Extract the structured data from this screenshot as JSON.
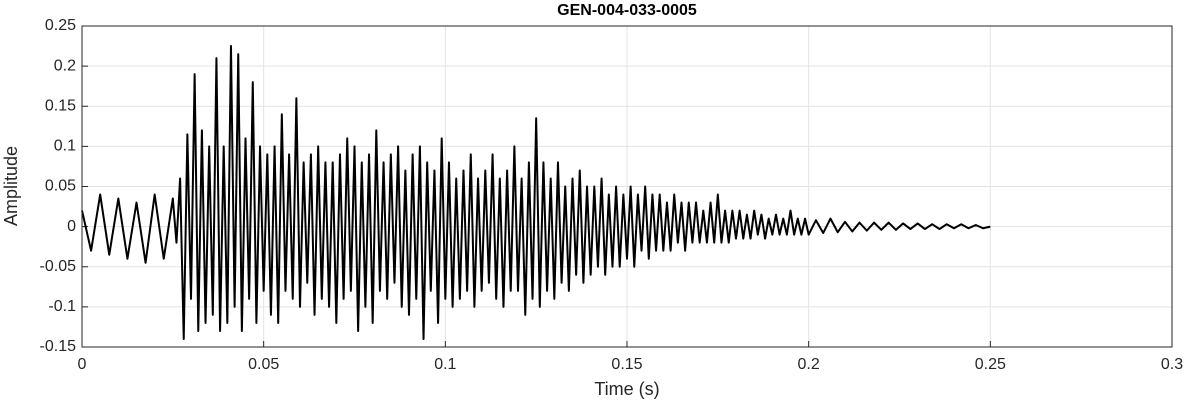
{
  "chart_data": {
    "type": "line",
    "title": "GEN-004-033-0005",
    "xlabel": "Time (s)",
    "ylabel": "Amplitude",
    "color": "#000000",
    "grid": true,
    "xlim": [
      0,
      0.3
    ],
    "xticks": [
      0,
      0.05,
      0.1,
      0.15,
      0.2,
      0.25,
      0.3
    ],
    "ylim": [
      -0.15,
      0.25
    ],
    "yticks": [
      -0.15,
      -0.1,
      -0.05,
      0,
      0.05,
      0.1,
      0.15,
      0.2,
      0.25
    ],
    "x": [
      0,
      0.0025,
      0.005,
      0.0075,
      0.01,
      0.0125,
      0.015,
      0.0175,
      0.02,
      0.0225,
      0.025,
      0.026,
      0.027,
      0.028,
      0.029,
      0.03,
      0.031,
      0.032,
      0.033,
      0.034,
      0.035,
      0.036,
      0.037,
      0.038,
      0.039,
      0.04,
      0.041,
      0.042,
      0.043,
      0.044,
      0.045,
      0.046,
      0.047,
      0.048,
      0.049,
      0.05,
      0.051,
      0.052,
      0.053,
      0.054,
      0.055,
      0.056,
      0.057,
      0.058,
      0.059,
      0.06,
      0.061,
      0.062,
      0.063,
      0.064,
      0.065,
      0.066,
      0.067,
      0.068,
      0.069,
      0.07,
      0.071,
      0.072,
      0.073,
      0.074,
      0.075,
      0.076,
      0.077,
      0.078,
      0.079,
      0.08,
      0.081,
      0.082,
      0.083,
      0.084,
      0.085,
      0.086,
      0.087,
      0.088,
      0.089,
      0.09,
      0.091,
      0.092,
      0.093,
      0.094,
      0.095,
      0.096,
      0.097,
      0.098,
      0.099,
      0.1,
      0.101,
      0.102,
      0.103,
      0.104,
      0.105,
      0.106,
      0.107,
      0.108,
      0.109,
      0.11,
      0.111,
      0.112,
      0.113,
      0.114,
      0.115,
      0.116,
      0.117,
      0.118,
      0.119,
      0.12,
      0.121,
      0.122,
      0.123,
      0.124,
      0.125,
      0.126,
      0.127,
      0.128,
      0.129,
      0.13,
      0.131,
      0.132,
      0.133,
      0.134,
      0.135,
      0.136,
      0.137,
      0.138,
      0.139,
      0.14,
      0.141,
      0.142,
      0.143,
      0.144,
      0.145,
      0.146,
      0.147,
      0.148,
      0.149,
      0.15,
      0.151,
      0.152,
      0.153,
      0.154,
      0.155,
      0.156,
      0.157,
      0.158,
      0.159,
      0.16,
      0.161,
      0.162,
      0.163,
      0.164,
      0.165,
      0.166,
      0.167,
      0.168,
      0.169,
      0.17,
      0.171,
      0.172,
      0.173,
      0.174,
      0.175,
      0.176,
      0.177,
      0.178,
      0.179,
      0.18,
      0.181,
      0.182,
      0.183,
      0.184,
      0.185,
      0.186,
      0.187,
      0.188,
      0.189,
      0.19,
      0.191,
      0.192,
      0.193,
      0.194,
      0.195,
      0.196,
      0.197,
      0.198,
      0.199,
      0.2,
      0.202,
      0.204,
      0.206,
      0.208,
      0.21,
      0.212,
      0.214,
      0.216,
      0.218,
      0.22,
      0.222,
      0.224,
      0.226,
      0.228,
      0.23,
      0.232,
      0.234,
      0.236,
      0.238,
      0.24,
      0.242,
      0.244,
      0.246,
      0.248,
      0.25
    ],
    "values": [
      0.02,
      -0.03,
      0.04,
      -0.035,
      0.035,
      -0.04,
      0.03,
      -0.045,
      0.04,
      -0.04,
      0.035,
      -0.02,
      0.06,
      -0.14,
      0.115,
      -0.09,
      0.19,
      -0.13,
      0.12,
      -0.12,
      0.1,
      -0.11,
      0.21,
      -0.13,
      0.1,
      -0.12,
      0.225,
      -0.1,
      0.215,
      -0.13,
      0.11,
      -0.09,
      0.18,
      -0.12,
      0.1,
      -0.08,
      0.09,
      -0.11,
      0.1,
      -0.12,
      0.14,
      -0.08,
      0.09,
      -0.09,
      0.16,
      -0.1,
      0.08,
      -0.07,
      0.09,
      -0.11,
      0.1,
      -0.09,
      0.08,
      -0.1,
      0.08,
      -0.12,
      0.09,
      -0.09,
      0.11,
      -0.08,
      0.1,
      -0.13,
      0.08,
      -0.1,
      0.09,
      -0.12,
      0.12,
      -0.08,
      0.08,
      -0.09,
      0.09,
      -0.07,
      0.1,
      -0.1,
      0.07,
      -0.11,
      0.09,
      -0.09,
      0.1,
      -0.14,
      0.08,
      -0.08,
      0.07,
      -0.12,
      0.11,
      -0.09,
      0.08,
      -0.1,
      0.06,
      -0.09,
      0.07,
      -0.08,
      0.09,
      -0.1,
      0.06,
      -0.08,
      0.07,
      -0.07,
      0.09,
      -0.09,
      0.06,
      -0.1,
      0.07,
      -0.08,
      0.1,
      -0.08,
      0.06,
      -0.11,
      0.08,
      -0.09,
      0.135,
      -0.1,
      0.08,
      -0.08,
      0.06,
      -0.09,
      0.08,
      -0.07,
      0.05,
      -0.08,
      0.06,
      -0.06,
      0.07,
      -0.07,
      0.05,
      -0.06,
      0.05,
      -0.05,
      0.06,
      -0.06,
      0.04,
      -0.05,
      0.05,
      -0.05,
      0.04,
      -0.04,
      0.05,
      -0.05,
      0.04,
      -0.03,
      0.05,
      -0.04,
      0.04,
      -0.03,
      0.04,
      -0.03,
      0.03,
      -0.03,
      0.04,
      -0.02,
      0.03,
      -0.03,
      0.03,
      -0.02,
      0.03,
      -0.02,
      0.02,
      -0.02,
      0.03,
      -0.02,
      0.04,
      -0.02,
      0.02,
      -0.02,
      0.02,
      -0.015,
      0.02,
      -0.015,
      0.015,
      -0.015,
      0.02,
      -0.01,
      0.015,
      -0.015,
      0.01,
      -0.01,
      0.015,
      -0.01,
      0.01,
      -0.01,
      0.02,
      -0.01,
      0.01,
      -0.01,
      0.01,
      -0.01,
      0.008,
      -0.008,
      0.01,
      -0.007,
      0.006,
      -0.006,
      0.005,
      -0.005,
      0.005,
      -0.004,
      0.005,
      -0.004,
      0.004,
      -0.003,
      0.004,
      -0.003,
      0.003,
      -0.003,
      0.003,
      -0.002,
      0.003,
      -0.002,
      0.002,
      -0.002,
      0
    ]
  }
}
